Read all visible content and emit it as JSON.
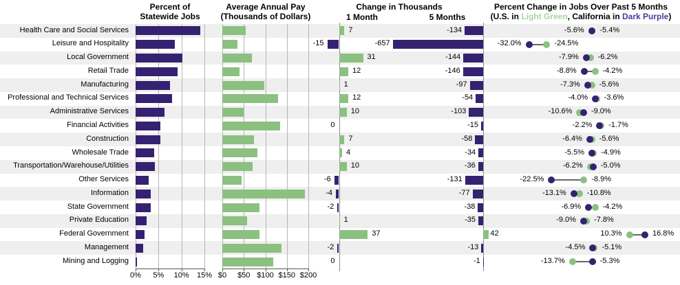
{
  "colors": {
    "california_dark_purple": "#342271",
    "us_light_green": "#8bc081",
    "subtitle_light_green": "#a7d6a0",
    "subtitle_dark_purple": "#4a3b9c",
    "row_stripe": "#efefef",
    "gridline": "#b5b5b5",
    "baseline": "#8c8c8c"
  },
  "headers": {
    "jobs_line1": "Percent of",
    "jobs_line2": "Statewide Jobs",
    "pay_line1": "Average Annual Pay",
    "pay_line2": "(Thousands of Dollars)",
    "change_title": "Change in Thousands",
    "change_1m": "1 Month",
    "change_5m": "5 Months",
    "pct_title": "Percent Change in Jobs Over Past 5 Months",
    "subtitle_parts": [
      "(U.S. in ",
      "Light Green",
      ", California in ",
      "Dark Purple",
      ")"
    ]
  },
  "axes": {
    "jobs_ticks": [
      "0%",
      "5%",
      "10%",
      "15%"
    ],
    "pay_ticks": [
      "$0",
      "$50",
      "$100",
      "$150",
      "$200"
    ]
  },
  "chart_data": {
    "type": "bar",
    "title": "California employment by industry",
    "categories": [
      "Health Care and Social Services",
      "Leisure and Hospitality",
      "Local Government",
      "Retail Trade",
      "Manufacturing",
      "Professional and Technical Services",
      "Administrative Services",
      "Financial Activities",
      "Construction",
      "Wholesale Trade",
      "Transportation/Warehouse/Utilities",
      "Other Services",
      "Information",
      "State Government",
      "Private Education",
      "Federal Government",
      "Management",
      "Mining and Logging"
    ],
    "series": [
      {
        "name": "Percent of Statewide Jobs",
        "type": "bar",
        "unit": "%",
        "xlim": [
          0,
          15
        ],
        "values": [
          14.1,
          8.6,
          10.2,
          9.2,
          7.5,
          8.0,
          6.3,
          5.4,
          5.4,
          4.0,
          4.2,
          2.9,
          3.3,
          3.3,
          2.4,
          2.0,
          1.6,
          0.3
        ]
      },
      {
        "name": "Average Annual Pay (Thousands of Dollars)",
        "type": "bar",
        "unit": "$k",
        "xlim": [
          0,
          200
        ],
        "values": [
          55,
          35,
          68,
          40,
          98,
          130,
          49,
          135,
          74,
          82,
          71,
          45,
          192,
          86,
          57,
          87,
          137,
          118
        ]
      },
      {
        "name": "Change in Thousands - 1 Month",
        "type": "bar",
        "values": [
          7,
          -15,
          31,
          12,
          1,
          12,
          10,
          0,
          7,
          4,
          10,
          -6,
          -4,
          -2,
          1,
          37,
          -2,
          0
        ]
      },
      {
        "name": "Change in Thousands - 5 Months",
        "type": "bar",
        "values": [
          -134,
          -657,
          -144,
          -146,
          -97,
          -54,
          -103,
          -15,
          -58,
          -34,
          -36,
          -131,
          -77,
          -38,
          -35,
          42,
          -13,
          -1
        ]
      },
      {
        "name": "Percent Change in Jobs Over Past 5 Months - U.S. (Light Green)",
        "type": "scatter",
        "unit": "%",
        "values": [
          -5.4,
          -24.5,
          -6.2,
          -4.2,
          -5.6,
          -3.6,
          -10.6,
          -1.7,
          -5.6,
          -4.9,
          -6.2,
          -8.9,
          -10.8,
          -4.2,
          -7.8,
          10.3,
          -4.5,
          -13.7
        ]
      },
      {
        "name": "Percent Change in Jobs Over Past 5 Months - California (Dark Purple)",
        "type": "scatter",
        "unit": "%",
        "values": [
          -5.6,
          -32.0,
          -7.9,
          -8.8,
          -7.3,
          -4.0,
          -9.0,
          -2.2,
          -6.4,
          -5.5,
          -5.0,
          -22.5,
          -13.1,
          -6.9,
          -9.0,
          16.8,
          -5.1,
          -5.3
        ]
      }
    ],
    "pct_labels": [
      {
        "left": "-5.6%",
        "right": "-5.4%"
      },
      {
        "left": "-32.0%",
        "right": "-24.5%"
      },
      {
        "left": "-7.9%",
        "right": "-6.2%"
      },
      {
        "left": "-8.8%",
        "right": "-4.2%"
      },
      {
        "left": "-7.3%",
        "right": "-5.6%"
      },
      {
        "left": "-4.0%",
        "right": "-3.6%"
      },
      {
        "left": "-10.6%",
        "right": "-9.0%"
      },
      {
        "left": "-2.2%",
        "right": "-1.7%"
      },
      {
        "left": "-6.4%",
        "right": "-5.6%"
      },
      {
        "left": "-5.5%",
        "right": "-4.9%"
      },
      {
        "left": "-6.2%",
        "right": "-5.0%"
      },
      {
        "left": "-22.5%",
        "right": "-8.9%"
      },
      {
        "left": "-13.1%",
        "right": "-10.8%"
      },
      {
        "left": "-6.9%",
        "right": "-4.2%"
      },
      {
        "left": "-9.0%",
        "right": "-7.8%"
      },
      {
        "left": "10.3%",
        "right": "16.8%"
      },
      {
        "left": "-4.5%",
        "right": "-5.1%"
      },
      {
        "left": "-13.7%",
        "right": "-5.3%"
      }
    ],
    "legend_position": "header",
    "grid": true
  }
}
